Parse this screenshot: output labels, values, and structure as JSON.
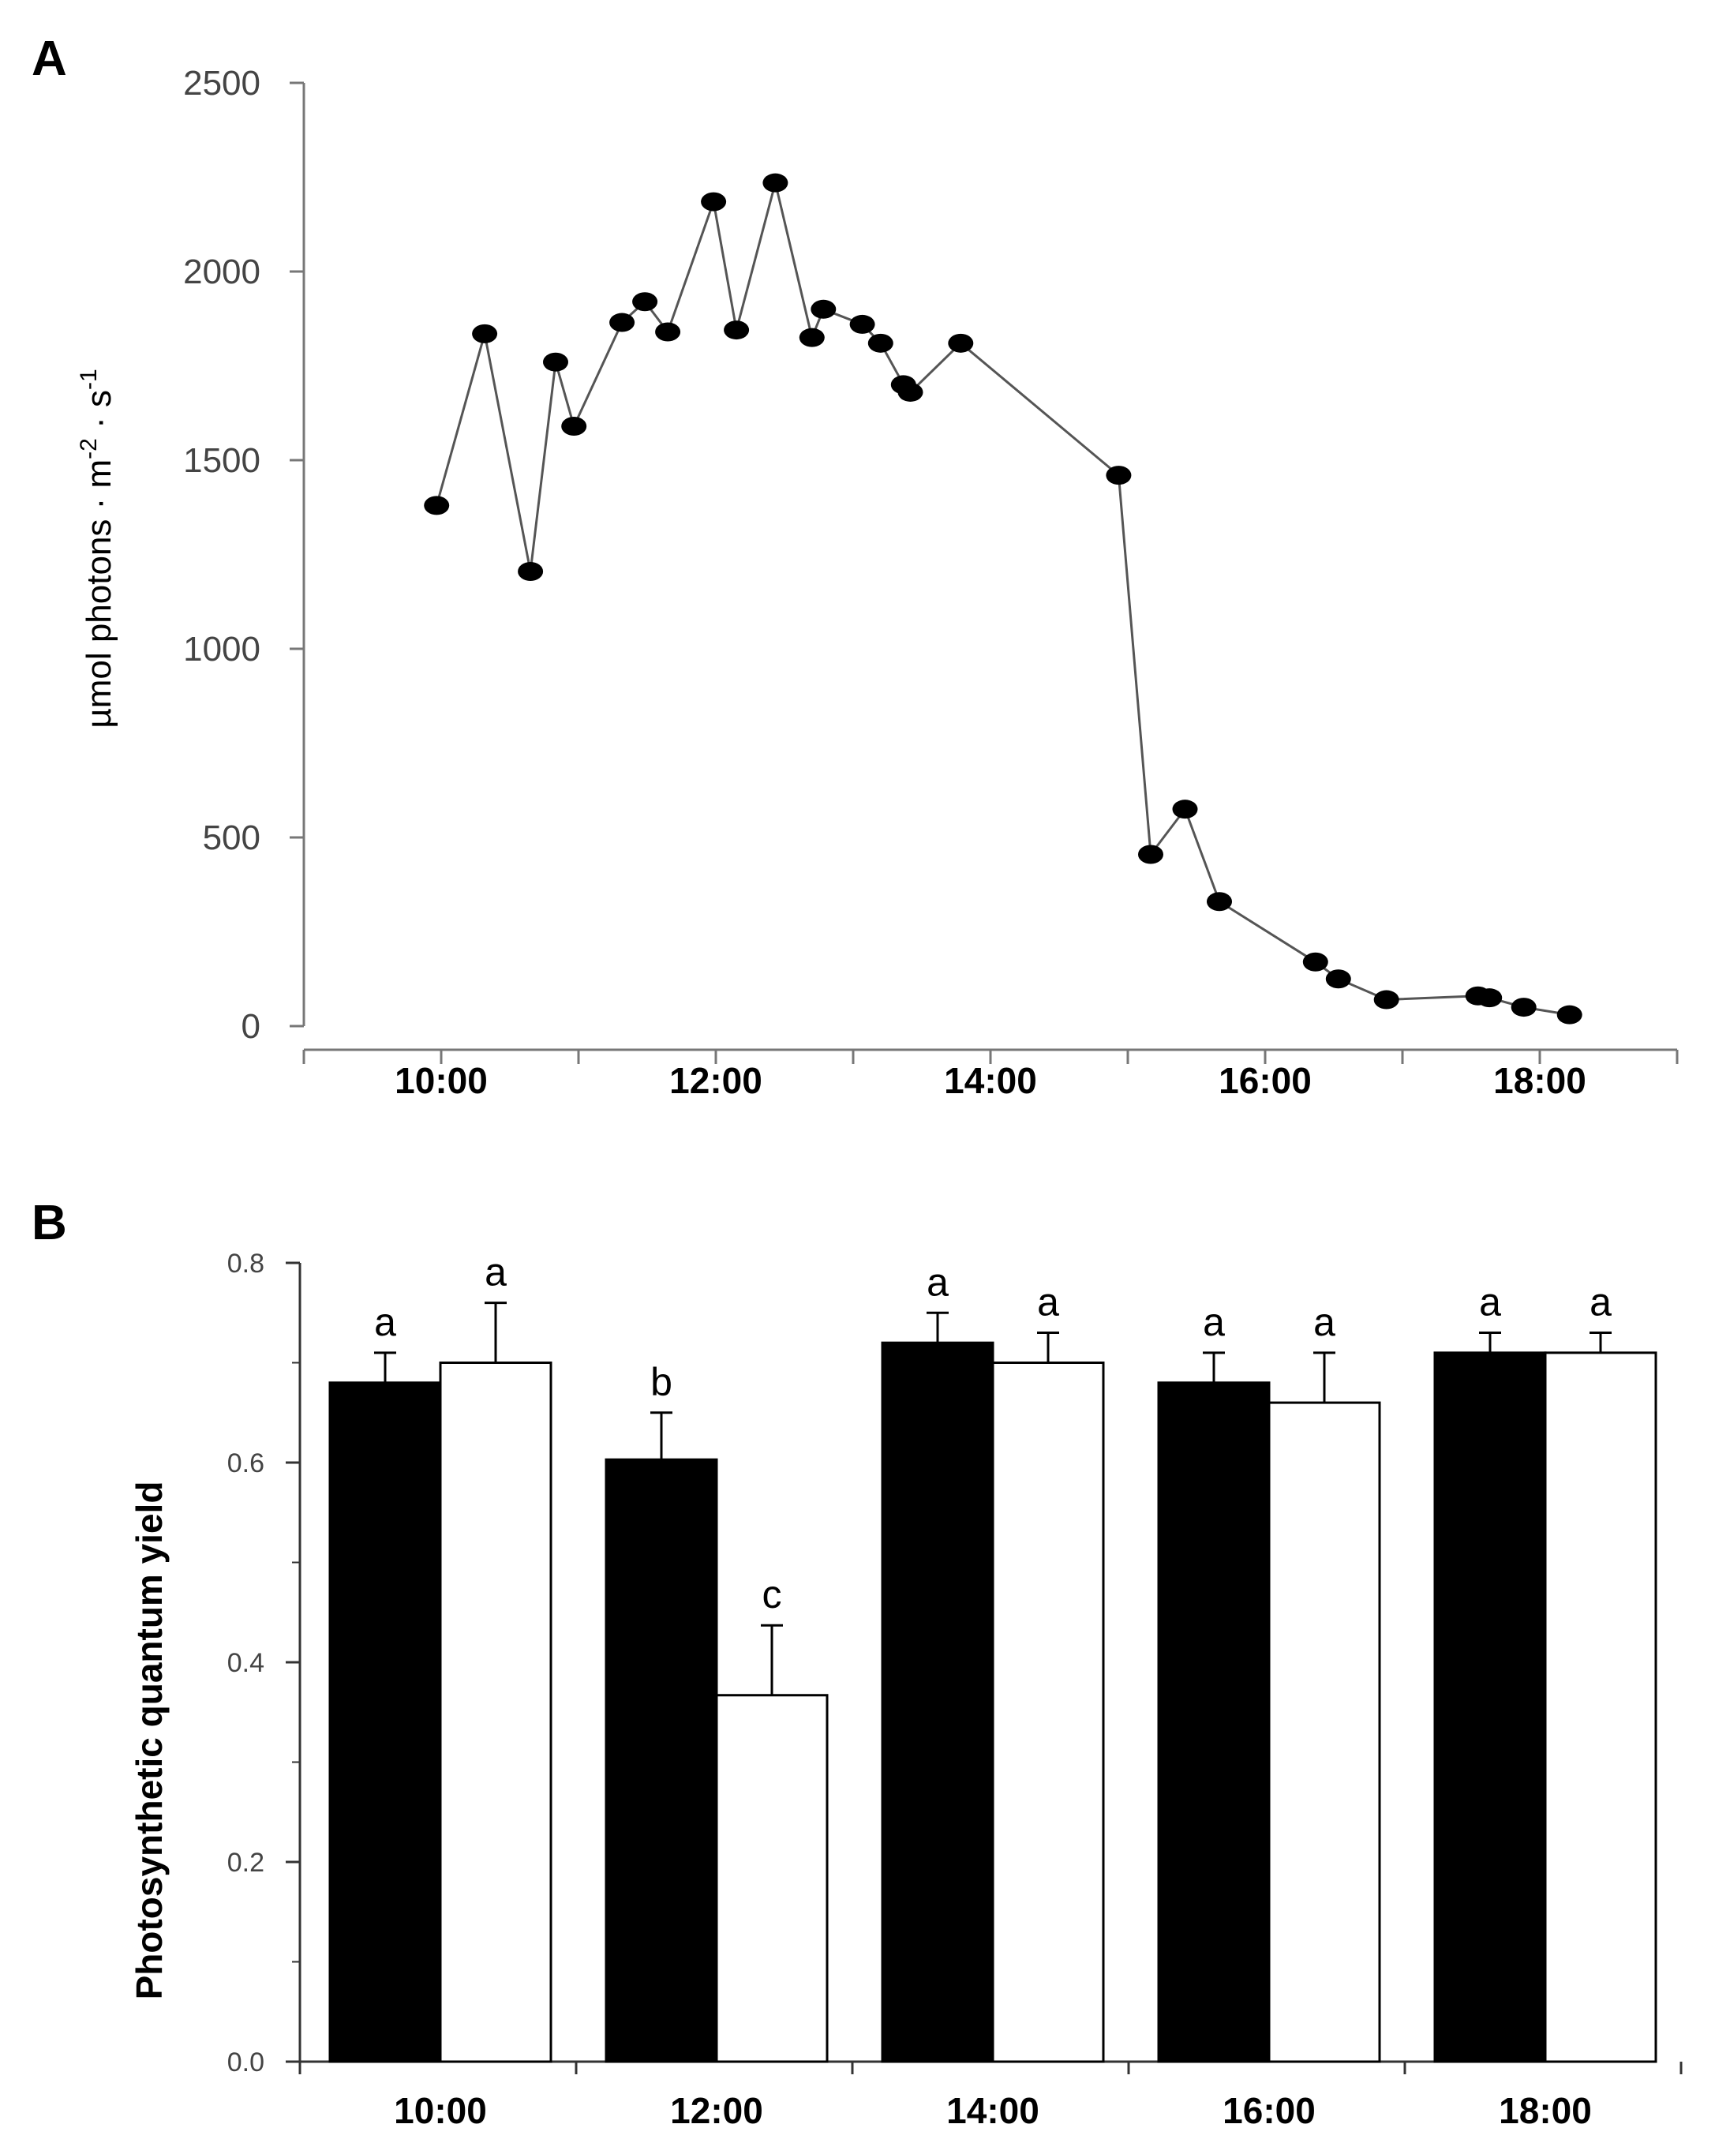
{
  "chart_data": [
    {
      "panel": "A",
      "type": "line",
      "ylabel_main": "µmol photons · m",
      "ylabel_sup1": "-2",
      "ylabel_mid": " · s",
      "ylabel_sup2": "-1",
      "xlabel": "",
      "xlim": [
        "09:00",
        "19:00"
      ],
      "ylim": [
        0,
        2500
      ],
      "x_ticks": [
        "10:00",
        "12:00",
        "14:00",
        "16:00",
        "18:00"
      ],
      "y_ticks": [
        "0",
        "500",
        "1000",
        "1500",
        "2000",
        "2500"
      ],
      "grid": false,
      "x": [
        "09:58",
        "10:19",
        "10:39",
        "10:50",
        "10:58",
        "11:19",
        "11:29",
        "11:39",
        "11:59",
        "12:09",
        "12:26",
        "12:42",
        "12:47",
        "13:04",
        "13:12",
        "13:22",
        "13:25",
        "13:47",
        "14:56",
        "15:10",
        "15:25",
        "15:40",
        "16:22",
        "16:32",
        "16:53",
        "17:33",
        "17:38",
        "17:53",
        "18:13"
      ],
      "y": [
        1380,
        1835,
        1205,
        1760,
        1590,
        1865,
        1920,
        1840,
        2185,
        1845,
        2235,
        1825,
        1900,
        1860,
        1810,
        1700,
        1680,
        1810,
        1460,
        455,
        575,
        330,
        170,
        125,
        70,
        80,
        75,
        50,
        30
      ],
      "marker": "filled-circle",
      "line_color": "#555555"
    },
    {
      "panel": "B",
      "type": "bar",
      "ylabel": "Photosynthetic quantum yield",
      "xlabel": "",
      "categories": [
        "10:00",
        "12:00",
        "14:00",
        "16:00",
        "18:00"
      ],
      "ylim": [
        0,
        0.8
      ],
      "y_ticks": [
        "0.0",
        "0.2",
        "0.4",
        "0.6",
        "0.8"
      ],
      "grid": false,
      "legend": "none",
      "series": [
        {
          "fill": "#000000",
          "values": [
            0.68,
            0.603,
            0.72,
            0.68,
            0.71
          ],
          "errors": [
            0.03,
            0.047,
            0.03,
            0.03,
            0.02
          ],
          "labels": [
            "a",
            "b",
            "a",
            "a",
            "a"
          ]
        },
        {
          "fill": "#ffffff",
          "values": [
            0.7,
            0.367,
            0.7,
            0.66,
            0.71
          ],
          "errors": [
            0.06,
            0.07,
            0.03,
            0.05,
            0.02
          ],
          "labels": [
            "a",
            "c",
            "a",
            "a",
            "a"
          ]
        }
      ]
    }
  ]
}
